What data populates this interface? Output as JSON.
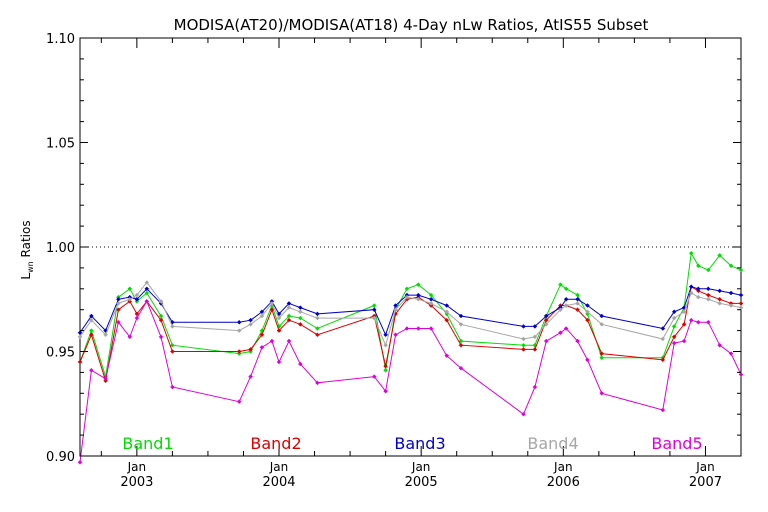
{
  "chart_data": {
    "type": "line",
    "title": "MODISA(AT20)/MODISA(AT18) 4-Day nLw Ratios, AtIS55 Subset",
    "ylabel": {
      "main": "L",
      "sub": "wn",
      "rest": " Ratios"
    },
    "ylim": [
      0.9,
      1.1
    ],
    "xlim": [
      2002.6,
      2007.25
    ],
    "yticks": [
      {
        "v": 0.9,
        "label": "0.90"
      },
      {
        "v": 0.95,
        "label": "0.95"
      },
      {
        "v": 1.0,
        "label": "1.00"
      },
      {
        "v": 1.05,
        "label": "1.05"
      },
      {
        "v": 1.1,
        "label": "1.10"
      }
    ],
    "xticks": [
      {
        "v": 2003.0,
        "month": "Jan",
        "year": "2003"
      },
      {
        "v": 2004.0,
        "month": "Jan",
        "year": "2004"
      },
      {
        "v": 2005.0,
        "month": "Jan",
        "year": "2005"
      },
      {
        "v": 2006.0,
        "month": "Jan",
        "year": "2006"
      },
      {
        "v": 2007.0,
        "month": "Jan",
        "year": "2007"
      }
    ],
    "reference_line": 1.0,
    "x": [
      2002.6,
      2002.68,
      2002.78,
      2002.87,
      2002.95,
      2003.0,
      2003.07,
      2003.17,
      2003.25,
      2003.72,
      2003.8,
      2003.88,
      2003.95,
      2004.0,
      2004.07,
      2004.15,
      2004.27,
      2004.67,
      2004.75,
      2004.82,
      2004.9,
      2004.98,
      2005.07,
      2005.18,
      2005.28,
      2005.72,
      2005.8,
      2005.88,
      2005.98,
      2006.02,
      2006.1,
      2006.17,
      2006.27,
      2006.7,
      2006.78,
      2006.85,
      2006.9,
      2006.95,
      2007.02,
      2007.1,
      2007.18,
      2007.25
    ],
    "series": [
      {
        "name": "Band1",
        "color": "#00dd00",
        "values": [
          0.945,
          0.96,
          0.938,
          0.976,
          0.98,
          0.974,
          0.978,
          0.967,
          0.953,
          0.949,
          0.95,
          0.96,
          0.972,
          0.962,
          0.967,
          0.966,
          0.961,
          0.972,
          0.941,
          0.97,
          0.98,
          0.982,
          0.977,
          0.968,
          0.955,
          0.953,
          0.953,
          0.967,
          0.982,
          0.98,
          0.977,
          0.968,
          0.947,
          0.947,
          0.962,
          0.971,
          0.997,
          0.991,
          0.989,
          0.996,
          0.991,
          0.989
        ]
      },
      {
        "name": "Band2",
        "color": "#dd0000",
        "values": [
          0.945,
          0.958,
          0.936,
          0.97,
          0.974,
          0.968,
          0.974,
          0.965,
          0.95,
          0.95,
          0.951,
          0.958,
          0.97,
          0.96,
          0.965,
          0.963,
          0.958,
          0.967,
          0.943,
          0.968,
          0.975,
          0.976,
          0.972,
          0.965,
          0.953,
          0.951,
          0.951,
          0.965,
          0.972,
          0.972,
          0.97,
          0.965,
          0.949,
          0.946,
          0.957,
          0.963,
          0.981,
          0.979,
          0.977,
          0.975,
          0.973,
          0.973
        ]
      },
      {
        "name": "Band3",
        "color": "#0000cc",
        "values": [
          0.959,
          0.967,
          0.96,
          0.975,
          0.976,
          0.975,
          0.98,
          0.973,
          0.964,
          0.964,
          0.965,
          0.969,
          0.974,
          0.968,
          0.973,
          0.971,
          0.968,
          0.97,
          0.958,
          0.972,
          0.977,
          0.977,
          0.975,
          0.972,
          0.967,
          0.962,
          0.962,
          0.967,
          0.971,
          0.975,
          0.975,
          0.972,
          0.967,
          0.961,
          0.969,
          0.971,
          0.981,
          0.98,
          0.98,
          0.979,
          0.978,
          0.977
        ]
      },
      {
        "name": "Band4",
        "color": "#a6a6a6",
        "values": [
          0.957,
          0.965,
          0.958,
          0.973,
          0.975,
          0.977,
          0.983,
          0.974,
          0.962,
          0.96,
          0.963,
          0.967,
          0.973,
          0.966,
          0.971,
          0.969,
          0.966,
          0.966,
          0.953,
          0.97,
          0.976,
          0.975,
          0.973,
          0.969,
          0.963,
          0.956,
          0.957,
          0.963,
          0.97,
          0.972,
          0.973,
          0.969,
          0.963,
          0.956,
          0.966,
          0.969,
          0.978,
          0.976,
          0.975,
          0.973,
          0.972,
          0.971
        ]
      },
      {
        "name": "Band5",
        "color": "#dd00dd",
        "values": [
          0.897,
          0.941,
          0.937,
          0.964,
          0.957,
          0.966,
          0.974,
          0.957,
          0.933,
          0.926,
          0.938,
          0.952,
          0.955,
          0.945,
          0.955,
          0.944,
          0.935,
          0.938,
          0.931,
          0.958,
          0.961,
          0.961,
          0.961,
          0.948,
          0.942,
          0.92,
          0.933,
          0.955,
          0.959,
          0.961,
          0.955,
          0.946,
          0.93,
          0.922,
          0.954,
          0.955,
          0.965,
          0.964,
          0.964,
          0.953,
          0.949,
          0.939
        ]
      }
    ],
    "legend": {
      "placement": "bottom-inside",
      "entries": [
        "Band1",
        "Band2",
        "Band3",
        "Band4",
        "Band5"
      ]
    },
    "grid": false
  }
}
